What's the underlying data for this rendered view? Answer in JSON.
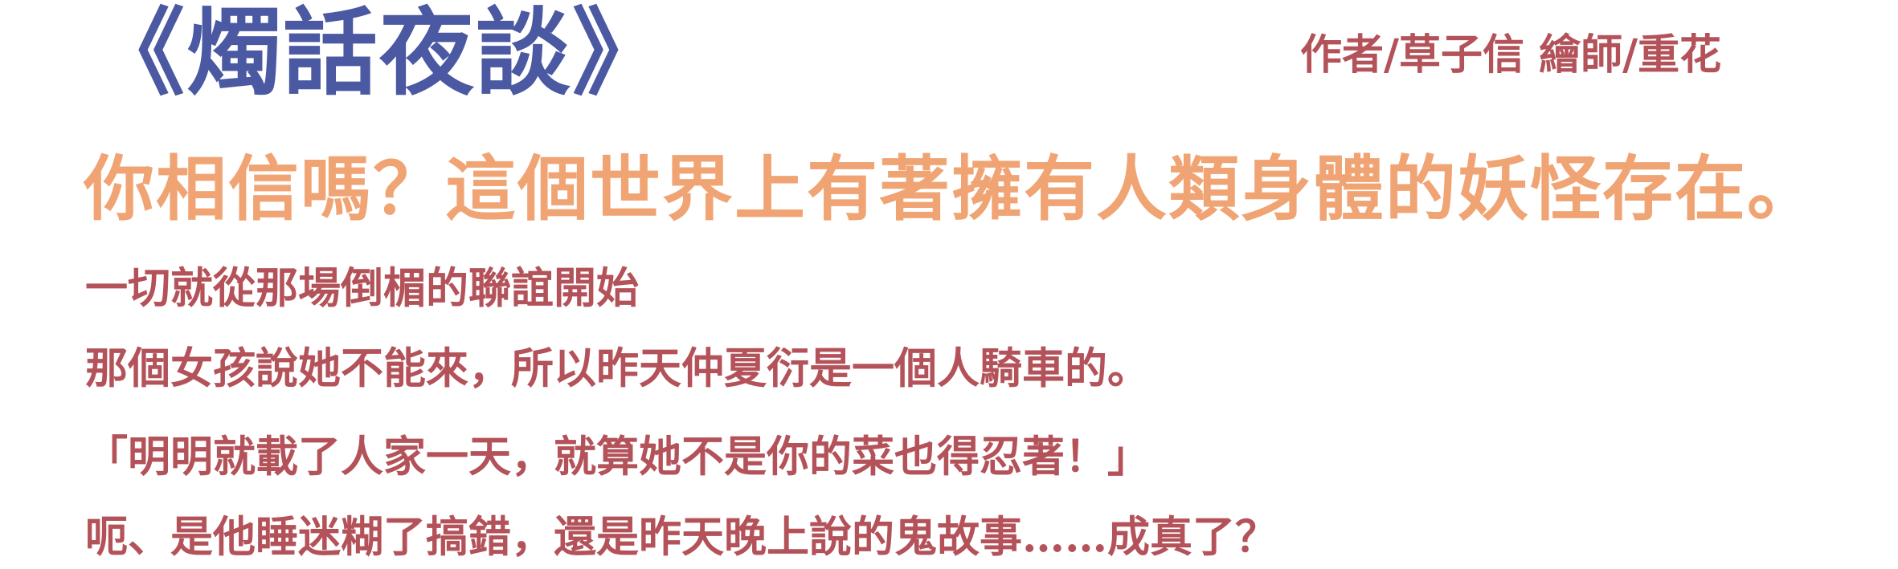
{
  "header": {
    "title": "《燭話夜談》",
    "credits": "作者/草子信 繪師/重花"
  },
  "content": {
    "headline": "你相信嗎？這個世界上有著擁有人類身體的妖怪存在。",
    "lines": [
      "一切就從那場倒楣的聯誼開始",
      "那個女孩說她不能來，所以昨天仲夏衍是一個人騎車的。",
      "「明明就載了人家一天，就算她不是你的菜也得忍著！」",
      "呃、是他睡迷糊了搞錯，還是昨天晚上說的鬼故事……成真了？"
    ]
  },
  "colors": {
    "title": "#4b58a2",
    "credits": "#b4525a",
    "headline": "#f0a474",
    "body": "#b4525a"
  }
}
